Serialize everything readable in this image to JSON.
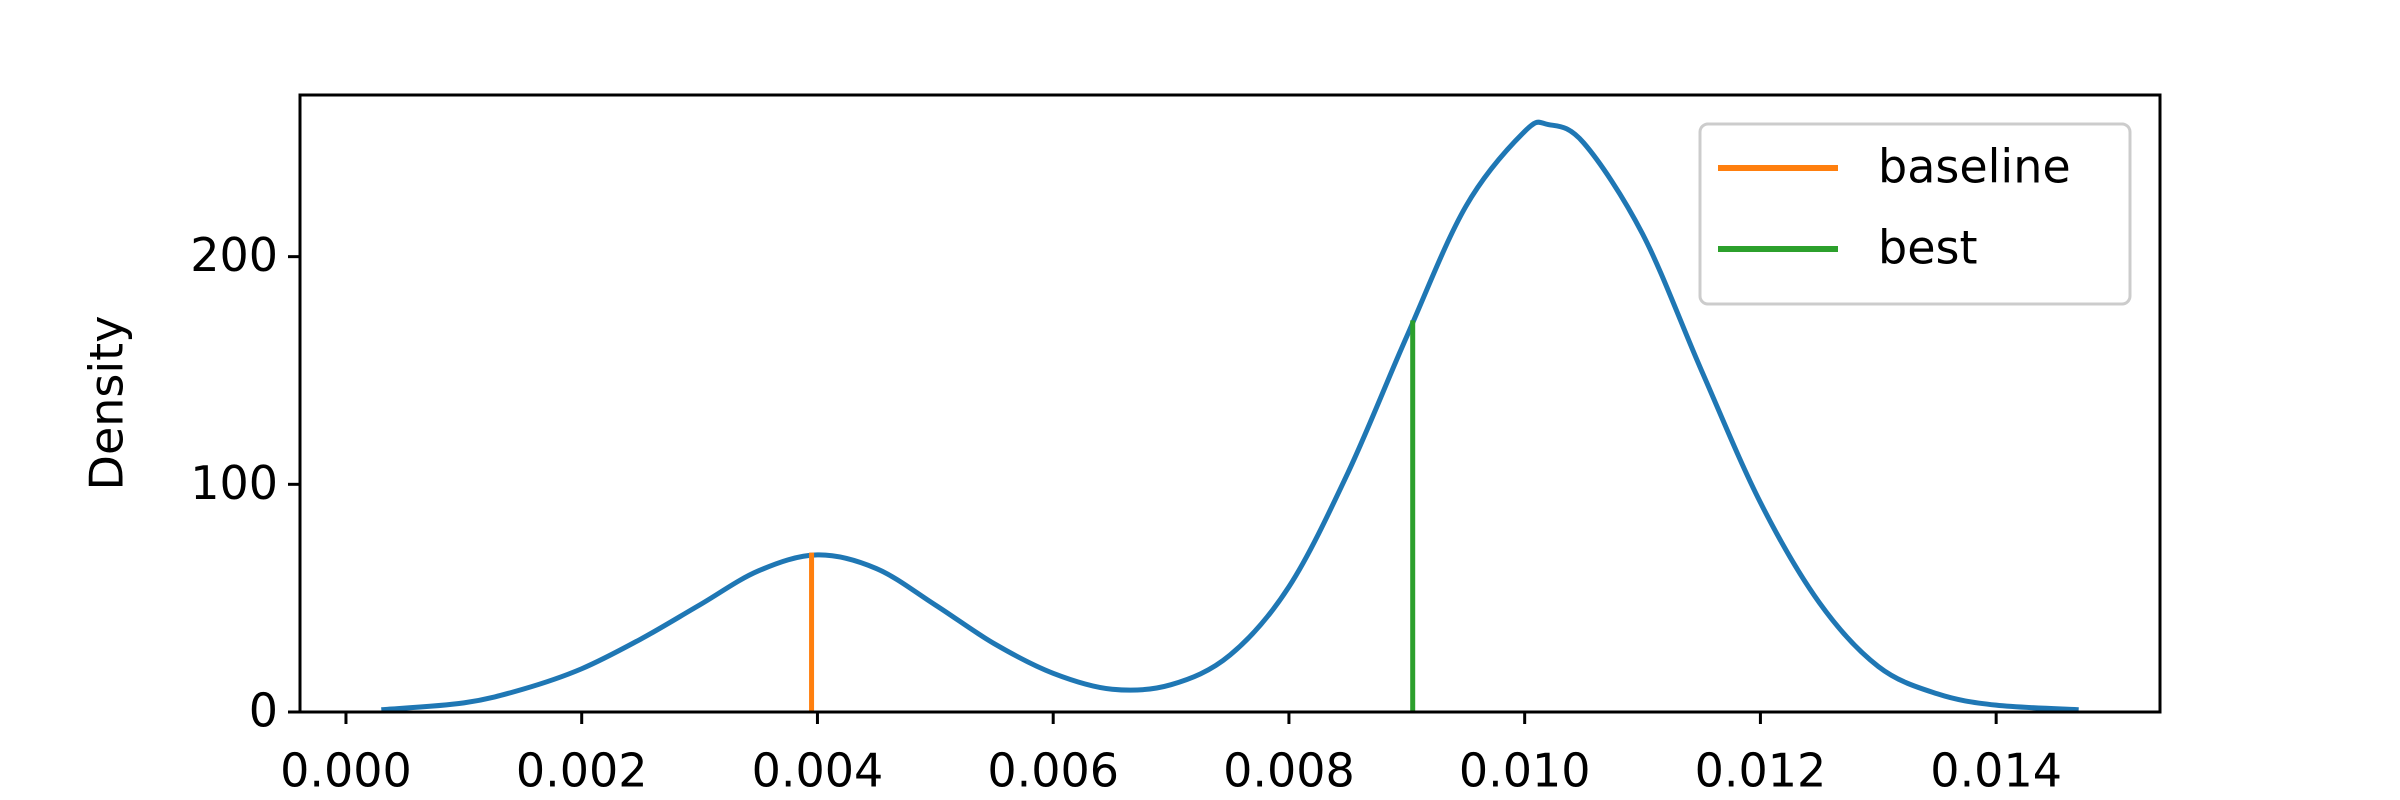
{
  "chart_data": {
    "type": "line",
    "ylabel": "Density",
    "x": [
      0.0003,
      0.001,
      0.0015,
      0.002,
      0.0025,
      0.003,
      0.0035,
      0.004,
      0.0045,
      0.005,
      0.0055,
      0.006,
      0.0065,
      0.007,
      0.0075,
      0.008,
      0.0085,
      0.009,
      0.0095,
      0.01,
      0.0102,
      0.0105,
      0.011,
      0.0115,
      0.012,
      0.0125,
      0.013,
      0.0135,
      0.014,
      0.0147
    ],
    "series": [
      {
        "color": "#1f77b4",
        "values": [
          1,
          4,
          10,
          19,
          32,
          47,
          62,
          69,
          63,
          47,
          30,
          17,
          10,
          12,
          25,
          55,
          105,
          165,
          222,
          255,
          258,
          250,
          210,
          150,
          92,
          48,
          20,
          8,
          3,
          1
        ]
      }
    ],
    "vlines": [
      {
        "name": "baseline",
        "color": "#ff7f0e",
        "x": 0.00395,
        "y": 70
      },
      {
        "name": "best",
        "color": "#2ca02c",
        "x": 0.00905,
        "y": 172
      }
    ],
    "xlim": [
      -0.00039,
      0.01539
    ],
    "ylim": [
      0,
      271
    ],
    "xticks": [
      {
        "value": 0,
        "label": "0.000"
      },
      0.002,
      0.004,
      0.006,
      0.008,
      {
        "value": 0.01,
        "label": "0.010"
      },
      0.012,
      0.014
    ],
    "yticks": [
      0,
      100,
      200
    ],
    "legend": "upper right"
  }
}
